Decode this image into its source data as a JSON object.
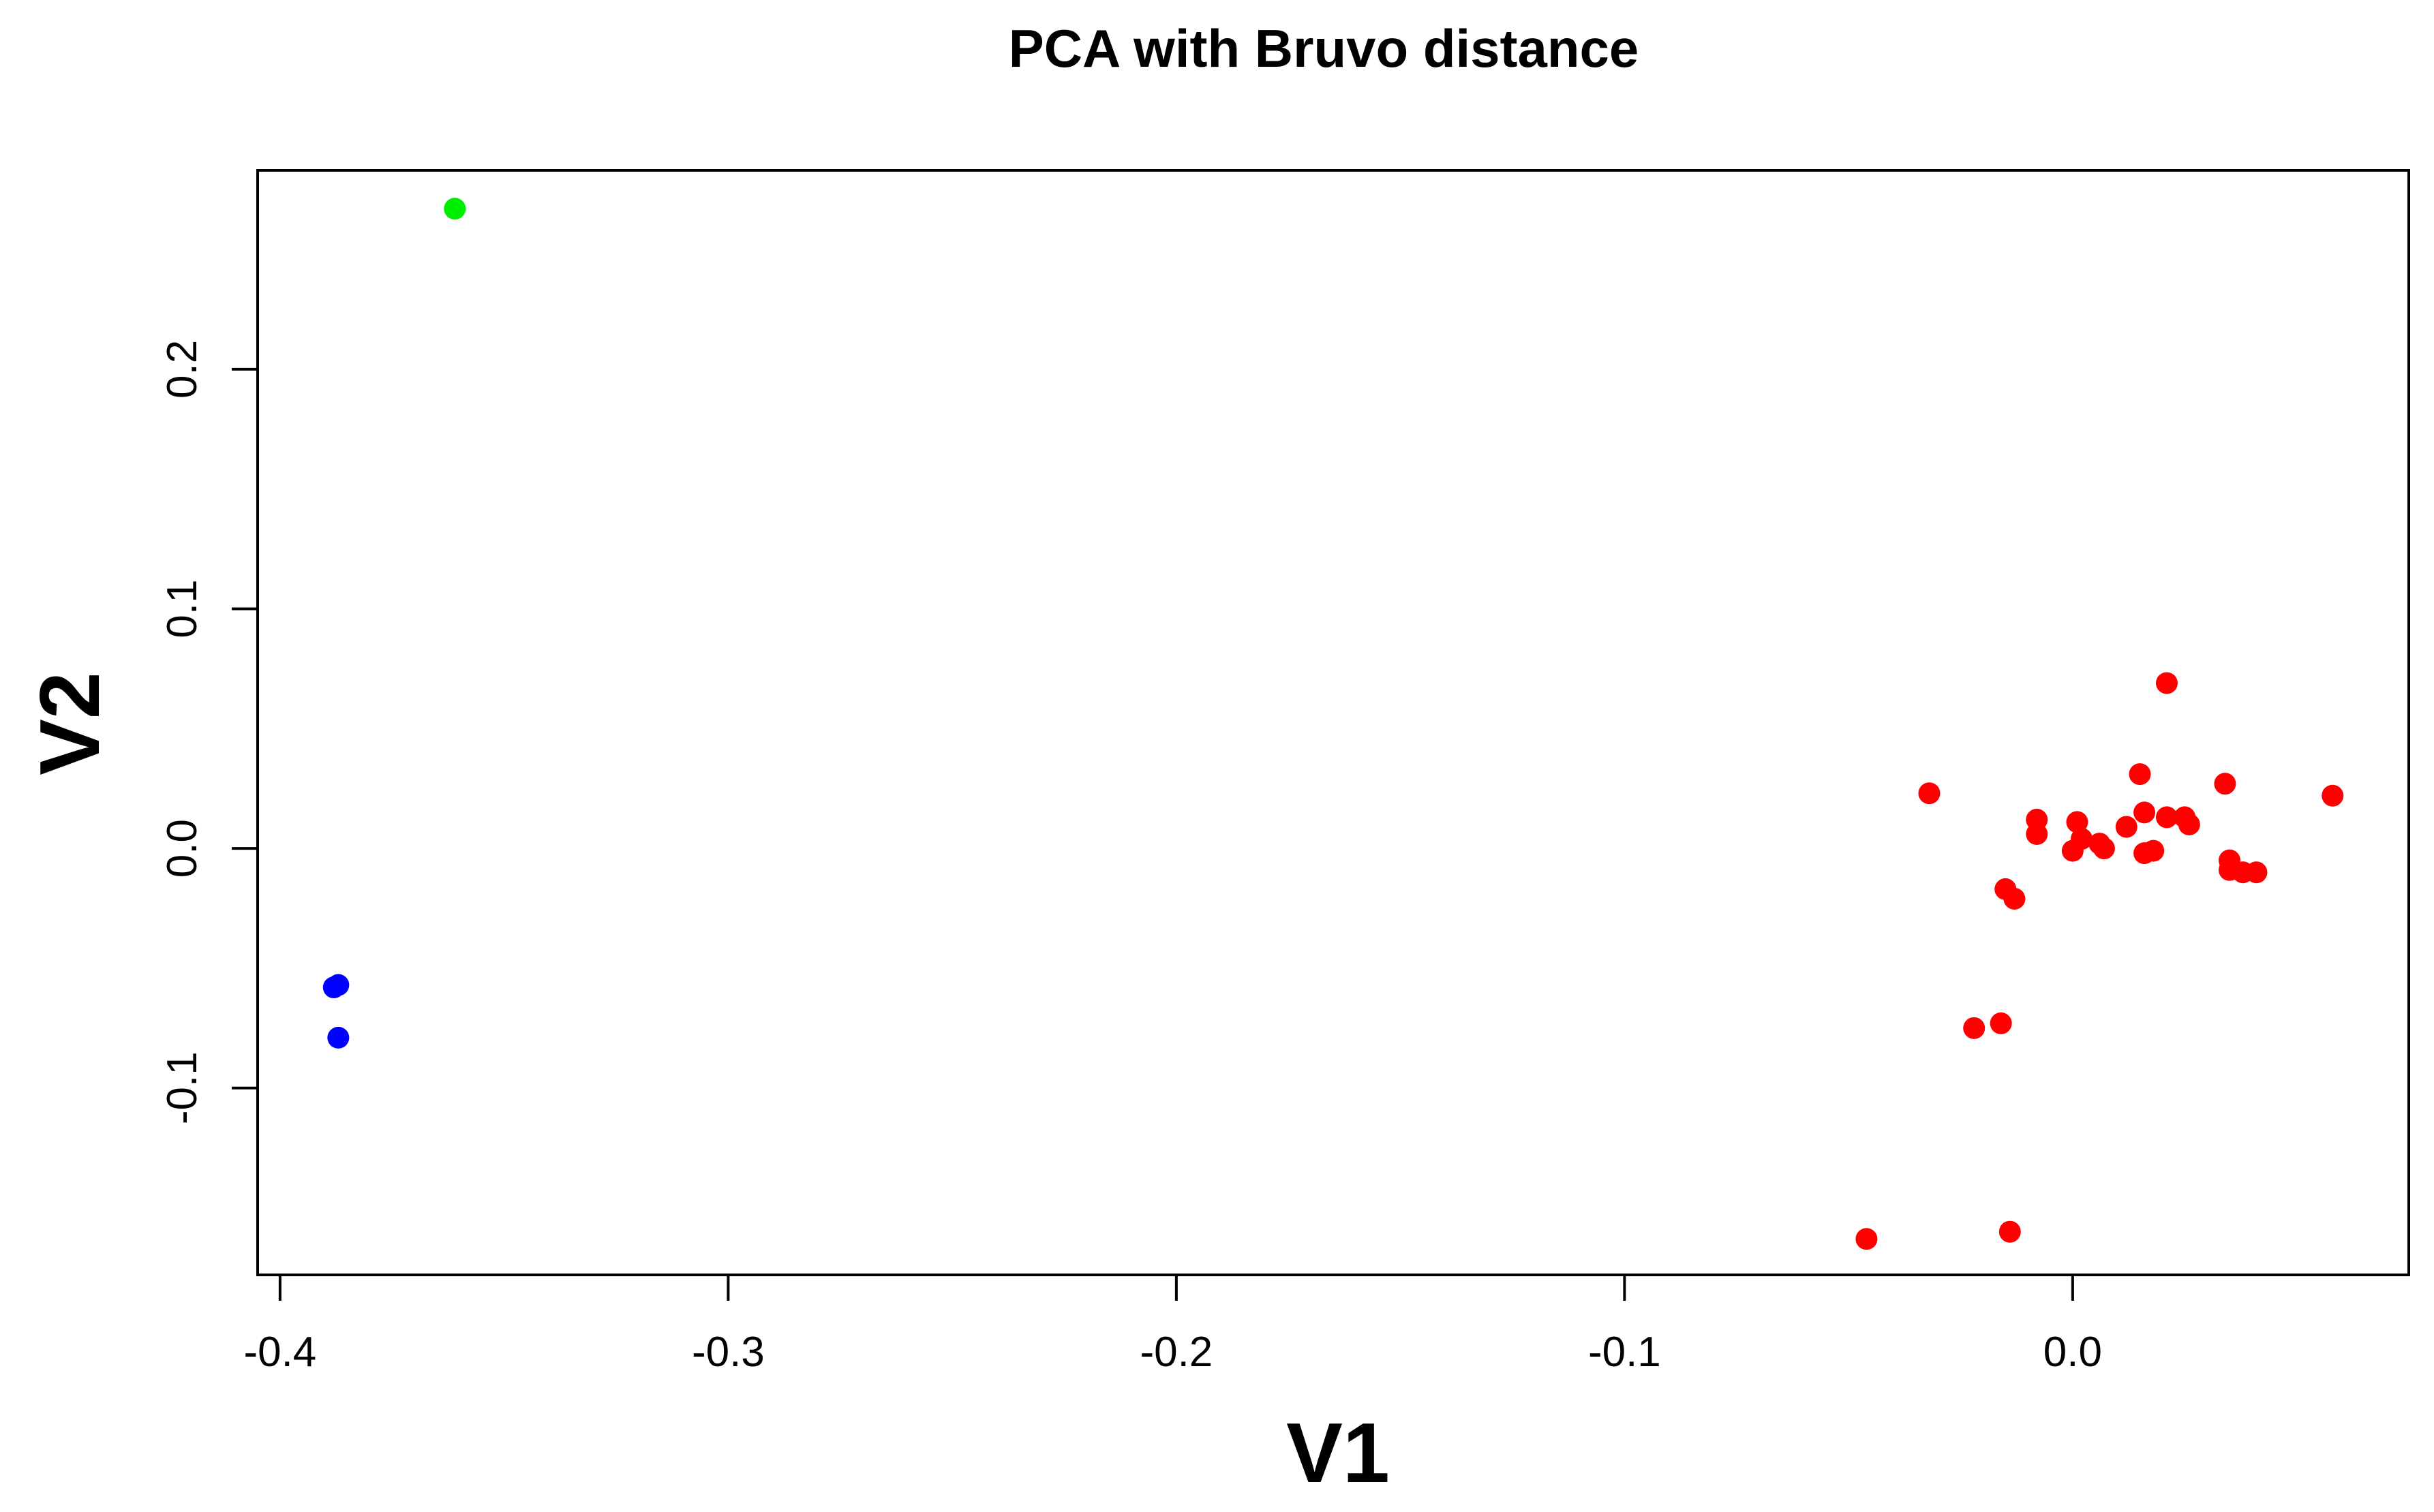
{
  "chart_data": {
    "type": "scatter",
    "title": "PCA with Bruvo distance",
    "xlabel": "V1",
    "ylabel": "V2",
    "xlim": [
      -0.405,
      0.075
    ],
    "ylim": [
      -0.178,
      0.283
    ],
    "x_ticks": [
      {
        "value": -0.4,
        "label": "-0.4"
      },
      {
        "value": -0.3,
        "label": "-0.3"
      },
      {
        "value": -0.2,
        "label": "-0.2"
      },
      {
        "value": -0.1,
        "label": "-0.1"
      },
      {
        "value": 0.0,
        "label": "0.0"
      }
    ],
    "y_ticks": [
      {
        "value": -0.1,
        "label": "-0.1"
      },
      {
        "value": 0.0,
        "label": "0.0"
      },
      {
        "value": 0.1,
        "label": "0.1"
      },
      {
        "value": 0.2,
        "label": "0.2"
      }
    ],
    "grid": false,
    "legend": "none",
    "series": [
      {
        "color": "#ff0000",
        "points": [
          {
            "x": 0.021,
            "y": 0.069
          },
          {
            "x": 0.015,
            "y": 0.031
          },
          {
            "x": 0.034,
            "y": 0.027
          },
          {
            "x": -0.032,
            "y": 0.023
          },
          {
            "x": 0.058,
            "y": 0.022
          },
          {
            "x": 0.016,
            "y": 0.015
          },
          {
            "x": 0.021,
            "y": 0.013
          },
          {
            "x": 0.025,
            "y": 0.013
          },
          {
            "x": -0.008,
            "y": 0.012
          },
          {
            "x": 0.001,
            "y": 0.011
          },
          {
            "x": 0.026,
            "y": 0.01
          },
          {
            "x": 0.012,
            "y": 0.009
          },
          {
            "x": -0.008,
            "y": 0.006
          },
          {
            "x": 0.002,
            "y": 0.004
          },
          {
            "x": 0.006,
            "y": 0.002
          },
          {
            "x": 0.007,
            "y": 0.0
          },
          {
            "x": 0.0,
            "y": -0.001
          },
          {
            "x": 0.018,
            "y": -0.001
          },
          {
            "x": 0.016,
            "y": -0.002
          },
          {
            "x": 0.035,
            "y": -0.005
          },
          {
            "x": 0.035,
            "y": -0.009
          },
          {
            "x": 0.038,
            "y": -0.01
          },
          {
            "x": 0.041,
            "y": -0.01
          },
          {
            "x": -0.015,
            "y": -0.017
          },
          {
            "x": -0.013,
            "y": -0.021
          },
          {
            "x": -0.016,
            "y": -0.073
          },
          {
            "x": -0.022,
            "y": -0.075
          },
          {
            "x": -0.014,
            "y": -0.16
          },
          {
            "x": -0.046,
            "y": -0.163
          }
        ]
      },
      {
        "color": "#0000ff",
        "points": [
          {
            "x": -0.387,
            "y": -0.057
          },
          {
            "x": -0.388,
            "y": -0.058
          },
          {
            "x": -0.387,
            "y": -0.079
          }
        ]
      },
      {
        "color": "#00ee00",
        "points": [
          {
            "x": -0.361,
            "y": 0.267
          }
        ]
      }
    ]
  }
}
